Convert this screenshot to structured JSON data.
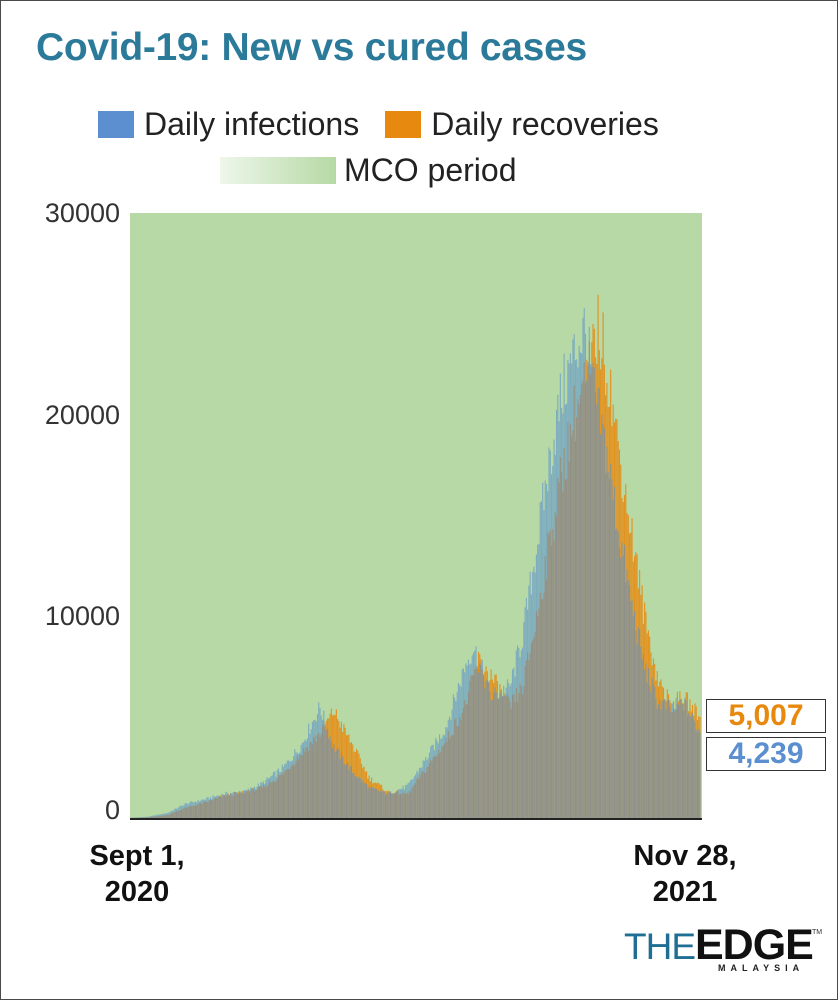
{
  "chart_data": {
    "type": "bar",
    "title": "Covid-19: New vs cured cases",
    "legend": {
      "placement": "top",
      "entries": [
        {
          "name": "Daily infections",
          "color": "#5b8fcf"
        },
        {
          "name": "Daily recoveries",
          "color": "#e8890f"
        },
        {
          "name": "MCO period",
          "color": "#b6d9a5"
        }
      ]
    },
    "x_start_label": "Sept 1, 2020",
    "x_end_label": "Nov 28, 2021",
    "x_range": [
      "2020-09-01",
      "2021-11-28"
    ],
    "ylim": [
      0,
      30000
    ],
    "y_ticks": [
      "30000",
      "20000",
      "10000",
      "0"
    ],
    "grid": false,
    "background_band": {
      "name": "MCO period",
      "color": "#b6d9a5"
    },
    "series": [
      {
        "name": "Daily infections",
        "color": "#5b8fcf",
        "last_value_label": "4,239",
        "points": [
          [
            "2020-09-01",
            10
          ],
          [
            "2020-09-15",
            60
          ],
          [
            "2020-10-01",
            250
          ],
          [
            "2020-10-15",
            700
          ],
          [
            "2020-11-01",
            950
          ],
          [
            "2020-11-15",
            1200
          ],
          [
            "2020-12-01",
            1300
          ],
          [
            "2020-12-15",
            1700
          ],
          [
            "2021-01-01",
            2500
          ],
          [
            "2021-01-15",
            3600
          ],
          [
            "2021-01-30",
            5500
          ],
          [
            "2021-02-10",
            3500
          ],
          [
            "2021-02-25",
            2300
          ],
          [
            "2021-03-10",
            1500
          ],
          [
            "2021-03-25",
            1200
          ],
          [
            "2021-04-10",
            1600
          ],
          [
            "2021-04-25",
            3000
          ],
          [
            "2021-05-10",
            4500
          ],
          [
            "2021-05-25",
            7500
          ],
          [
            "2021-06-01",
            8500
          ],
          [
            "2021-06-15",
            6000
          ],
          [
            "2021-06-30",
            6500
          ],
          [
            "2021-07-10",
            9000
          ],
          [
            "2021-07-20",
            13000
          ],
          [
            "2021-07-31",
            17500
          ],
          [
            "2021-08-10",
            21000
          ],
          [
            "2021-08-20",
            23000
          ],
          [
            "2021-08-28",
            24200
          ],
          [
            "2021-09-05",
            21000
          ],
          [
            "2021-09-15",
            18000
          ],
          [
            "2021-09-25",
            14000
          ],
          [
            "2021-10-05",
            10500
          ],
          [
            "2021-10-15",
            7500
          ],
          [
            "2021-10-25",
            5800
          ],
          [
            "2021-11-05",
            5400
          ],
          [
            "2021-11-15",
            5700
          ],
          [
            "2021-11-28",
            4239
          ]
        ]
      },
      {
        "name": "Daily recoveries",
        "color": "#e8890f",
        "last_value_label": "5,007",
        "points": [
          [
            "2020-09-01",
            5
          ],
          [
            "2020-09-15",
            30
          ],
          [
            "2020-10-01",
            150
          ],
          [
            "2020-10-15",
            500
          ],
          [
            "2020-11-01",
            800
          ],
          [
            "2020-11-15",
            1100
          ],
          [
            "2020-12-01",
            1300
          ],
          [
            "2020-12-15",
            1500
          ],
          [
            "2021-01-01",
            2200
          ],
          [
            "2021-01-15",
            3200
          ],
          [
            "2021-01-30",
            4200
          ],
          [
            "2021-02-10",
            5300
          ],
          [
            "2021-02-25",
            3600
          ],
          [
            "2021-03-10",
            2000
          ],
          [
            "2021-03-25",
            1300
          ],
          [
            "2021-04-10",
            1200
          ],
          [
            "2021-04-25",
            2500
          ],
          [
            "2021-05-10",
            3800
          ],
          [
            "2021-05-25",
            5500
          ],
          [
            "2021-06-05",
            7800
          ],
          [
            "2021-06-15",
            7000
          ],
          [
            "2021-06-30",
            5500
          ],
          [
            "2021-07-10",
            6500
          ],
          [
            "2021-07-20",
            9500
          ],
          [
            "2021-07-31",
            13500
          ],
          [
            "2021-08-10",
            17000
          ],
          [
            "2021-08-20",
            20000
          ],
          [
            "2021-09-01",
            22000
          ],
          [
            "2021-09-08",
            24300
          ],
          [
            "2021-09-15",
            22500
          ],
          [
            "2021-09-25",
            18000
          ],
          [
            "2021-10-05",
            14000
          ],
          [
            "2021-10-15",
            10000
          ],
          [
            "2021-10-25",
            7000
          ],
          [
            "2021-11-05",
            5600
          ],
          [
            "2021-11-15",
            6000
          ],
          [
            "2021-11-28",
            5007
          ]
        ]
      }
    ]
  },
  "branding": {
    "the": "THE",
    "edge": "EDGE",
    "sub": "MALAYSIA",
    "tm": "TM"
  }
}
